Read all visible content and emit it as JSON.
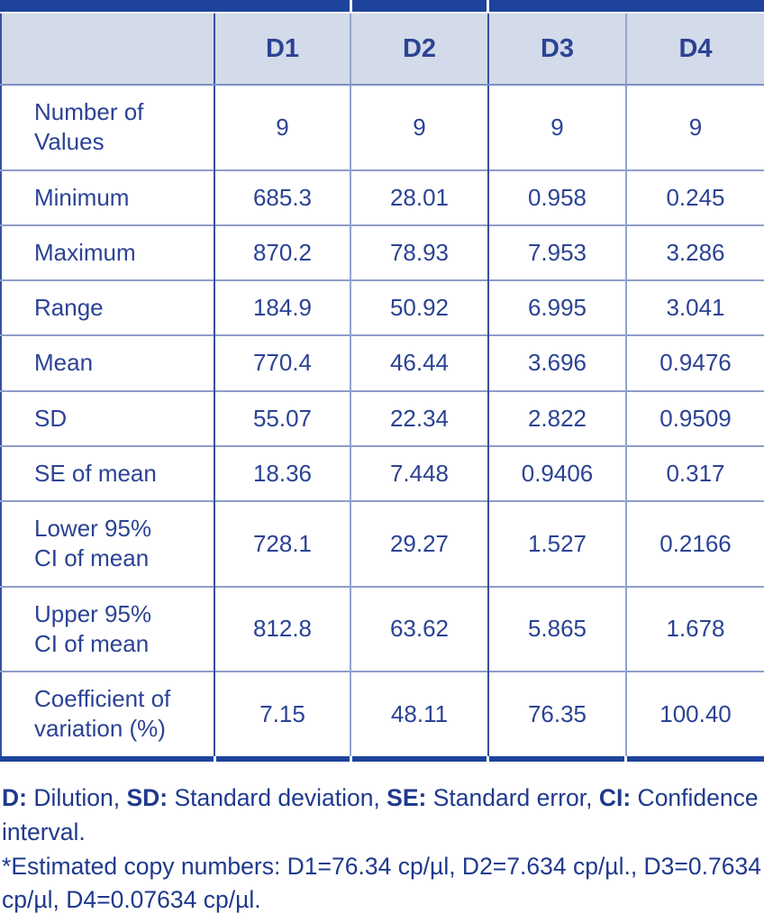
{
  "colors": {
    "bar_blue": "#1e439c",
    "header_bg": "#d3dae9",
    "text_blue": "#2b4394",
    "border_dark": "#35519f",
    "border_light": "#92a3d1"
  },
  "table": {
    "column_headers": [
      "D1",
      "D2",
      "D3",
      "D4"
    ],
    "rows": [
      {
        "label": "Number of\nValues",
        "values": [
          "9",
          "9",
          "9",
          "9"
        ]
      },
      {
        "label": "Minimum",
        "values": [
          "685.3",
          "28.01",
          "0.958",
          "0.245"
        ]
      },
      {
        "label": "Maximum",
        "values": [
          "870.2",
          "78.93",
          "7.953",
          "3.286"
        ]
      },
      {
        "label": "Range",
        "values": [
          "184.9",
          "50.92",
          "6.995",
          "3.041"
        ]
      },
      {
        "label": "Mean",
        "values": [
          "770.4",
          "46.44",
          "3.696",
          "0.9476"
        ]
      },
      {
        "label": "SD",
        "values": [
          "55.07",
          "22.34",
          "2.822",
          "0.9509"
        ]
      },
      {
        "label": "SE of mean",
        "values": [
          "18.36",
          "7.448",
          "0.9406",
          "0.317"
        ]
      },
      {
        "label": "Lower 95%\nCI of mean",
        "values": [
          "728.1",
          "29.27",
          "1.527",
          "0.2166"
        ]
      },
      {
        "label": "Upper 95%\nCI of mean",
        "values": [
          "812.8",
          "63.62",
          "5.865",
          "1.678"
        ]
      },
      {
        "label": "Coefficient of\nvariation (%)",
        "values": [
          "7.15",
          "48.11",
          "76.35",
          "100.40"
        ]
      }
    ]
  },
  "footnotes": {
    "abbreviations": [
      {
        "text": "D:",
        "bold": true
      },
      {
        "text": " Dilution, ",
        "bold": false
      },
      {
        "text": "SD:",
        "bold": true
      },
      {
        "text": " Standard deviation, ",
        "bold": false
      },
      {
        "text": "SE:",
        "bold": true
      },
      {
        "text": " Standard error, ",
        "bold": false
      },
      {
        "text": "CI:",
        "bold": true
      },
      {
        "text": " Confidence interval.",
        "bold": false
      }
    ],
    "estimated": "*Estimated copy numbers: D1=76.34 cp/µl, D2=7.634 cp/µl., D3=0.7634 cp/µl, D4=0.07634 cp/µl."
  }
}
